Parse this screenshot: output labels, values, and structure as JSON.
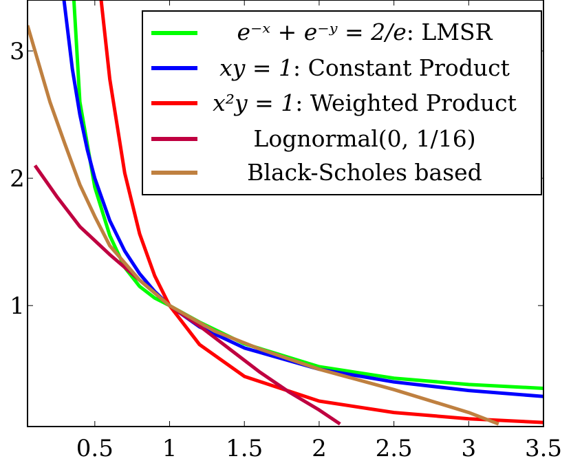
{
  "chart_data": {
    "type": "line",
    "title": "",
    "xlabel": "",
    "ylabel": "",
    "xlim": [
      0.05,
      3.5
    ],
    "ylim": [
      0.05,
      3.4
    ],
    "grid": false,
    "legend_position": "top-right",
    "x_ticks": [
      {
        "value": 0.5,
        "label": "0.5"
      },
      {
        "value": 1,
        "label": "1"
      },
      {
        "value": 1.5,
        "label": "1.5"
      },
      {
        "value": 2,
        "label": "2"
      },
      {
        "value": 2.5,
        "label": "2.5"
      },
      {
        "value": 3,
        "label": "3"
      },
      {
        "value": 3.5,
        "label": "3.5"
      }
    ],
    "y_ticks": [
      {
        "value": 1,
        "label": "1"
      },
      {
        "value": 2,
        "label": "2"
      },
      {
        "value": 3,
        "label": "3"
      }
    ],
    "series": [
      {
        "name": "e^{-x} + e^{-y} = 2/e: LMSR",
        "color": "#00ff00",
        "points": [
          [
            0.36,
            3.4
          ],
          [
            0.4,
            2.6
          ],
          [
            0.5,
            1.93
          ],
          [
            0.6,
            1.55
          ],
          [
            0.7,
            1.3
          ],
          [
            0.8,
            1.15
          ],
          [
            0.9,
            1.06
          ],
          [
            1,
            1
          ],
          [
            1.2,
            0.87
          ],
          [
            1.5,
            0.7
          ],
          [
            2,
            0.52
          ],
          [
            2.5,
            0.43
          ],
          [
            3,
            0.38
          ],
          [
            3.5,
            0.35
          ]
        ]
      },
      {
        "name": "xy = 1: Constant Product",
        "color": "#0000ff",
        "points": [
          [
            0.294,
            3.4
          ],
          [
            0.35,
            2.857
          ],
          [
            0.4,
            2.5
          ],
          [
            0.45,
            2.222
          ],
          [
            0.5,
            2
          ],
          [
            0.6,
            1.667
          ],
          [
            0.7,
            1.429
          ],
          [
            0.8,
            1.25
          ],
          [
            0.9,
            1.111
          ],
          [
            1,
            1
          ],
          [
            1.2,
            0.833
          ],
          [
            1.5,
            0.667
          ],
          [
            2,
            0.5
          ],
          [
            2.5,
            0.4
          ],
          [
            3,
            0.333
          ],
          [
            3.5,
            0.286
          ]
        ]
      },
      {
        "name": "x^2 y = 1: Weighted Product",
        "color": "#ff0000",
        "points": [
          [
            0.542,
            3.4
          ],
          [
            0.6,
            2.778
          ],
          [
            0.7,
            2.041
          ],
          [
            0.8,
            1.563
          ],
          [
            0.9,
            1.235
          ],
          [
            1,
            1
          ],
          [
            1.2,
            0.694
          ],
          [
            1.5,
            0.444
          ],
          [
            2,
            0.25
          ],
          [
            2.5,
            0.16
          ],
          [
            3,
            0.111
          ],
          [
            3.5,
            0.082
          ]
        ]
      },
      {
        "name": "Lognormal(0, 1/16)",
        "color": "#bf0040",
        "points": [
          [
            0.1,
            2.1
          ],
          [
            0.25,
            1.85
          ],
          [
            0.4,
            1.62
          ],
          [
            0.6,
            1.4
          ],
          [
            0.8,
            1.2
          ],
          [
            1,
            1
          ],
          [
            1.2,
            0.84
          ],
          [
            1.4,
            0.66
          ],
          [
            1.6,
            0.48
          ],
          [
            1.8,
            0.32
          ],
          [
            2,
            0.18
          ],
          [
            2.14,
            0.07
          ]
        ]
      },
      {
        "name": "Black-Scholes based",
        "color": "#bf8040",
        "points": [
          [
            0.05,
            3.2
          ],
          [
            0.2,
            2.6
          ],
          [
            0.3,
            2.27
          ],
          [
            0.4,
            1.95
          ],
          [
            0.5,
            1.7
          ],
          [
            0.6,
            1.47
          ],
          [
            0.8,
            1.2
          ],
          [
            1,
            1
          ],
          [
            1.3,
            0.8
          ],
          [
            1.6,
            0.66
          ],
          [
            2,
            0.5
          ],
          [
            2.5,
            0.34
          ],
          [
            3,
            0.16
          ],
          [
            3.2,
            0.07
          ]
        ]
      }
    ]
  },
  "legend": {
    "items": [
      {
        "math": "e⁻ˣ + e⁻ʸ = 2/e",
        "text": ": LMSR"
      },
      {
        "math": "xy = 1",
        "text": ": Constant Product"
      },
      {
        "math": "x²y = 1",
        "text": ": Weighted Product"
      },
      {
        "math": "",
        "text": "Lognormal(0, 1/16)"
      },
      {
        "math": "",
        "text": "Black-Scholes based"
      }
    ]
  }
}
